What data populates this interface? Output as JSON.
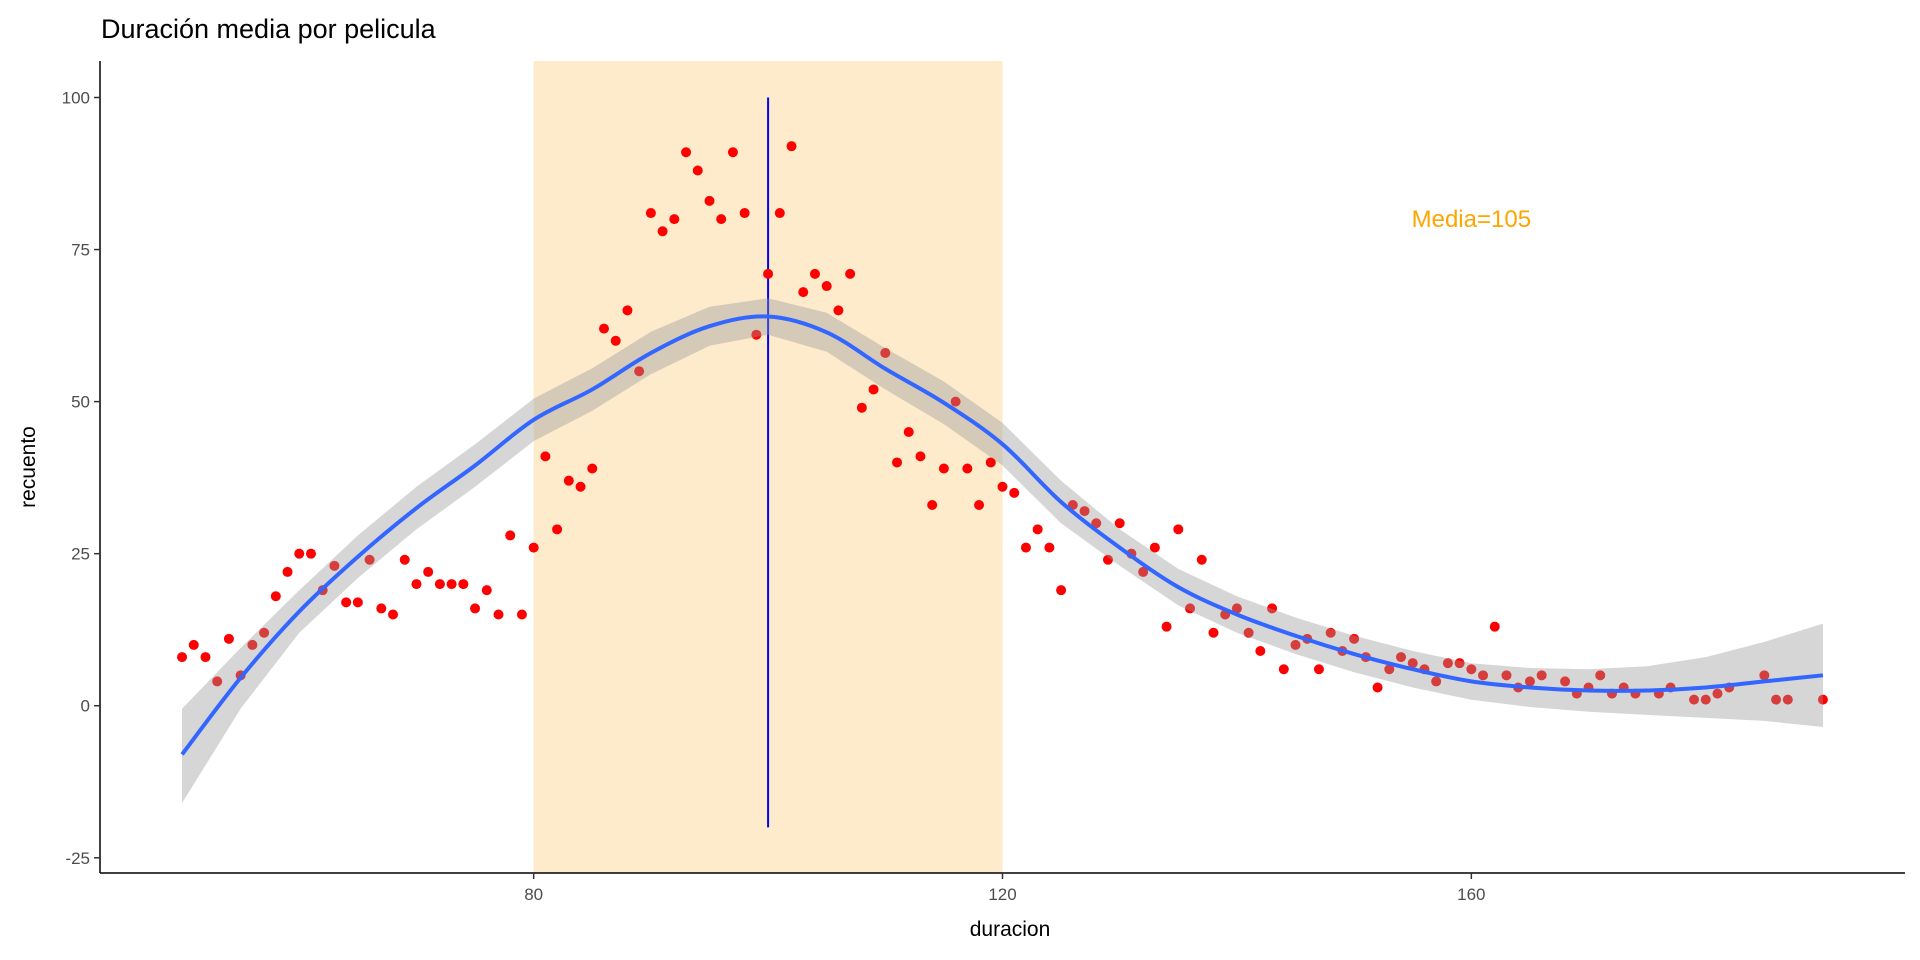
{
  "chart_data": {
    "type": "scatter",
    "title": "Duración media por pelicula",
    "xlabel": "duracion",
    "ylabel": "recuento",
    "xlim": [
      43,
      197
    ],
    "ylim": [
      -27.5,
      106
    ],
    "x_ticks": [
      80,
      120,
      160
    ],
    "y_ticks": [
      -25,
      0,
      25,
      50,
      75,
      100
    ],
    "grid": false,
    "points": {
      "name": "recuento",
      "color": "#FF0000",
      "x": [
        50,
        51,
        52,
        53,
        54,
        55,
        56,
        57,
        58,
        59,
        60,
        61,
        62,
        63,
        64,
        65,
        66,
        67,
        68,
        69,
        70,
        71,
        72,
        73,
        74,
        75,
        76,
        77,
        78,
        79,
        80,
        81,
        82,
        83,
        84,
        85,
        86,
        87,
        88,
        89,
        90,
        91,
        92,
        93,
        94,
        95,
        96,
        97,
        98,
        99,
        100,
        101,
        102,
        103,
        104,
        105,
        106,
        107,
        108,
        109,
        110,
        111,
        112,
        113,
        114,
        115,
        116,
        117,
        118,
        119,
        120,
        121,
        122,
        123,
        124,
        125,
        126,
        127,
        128,
        129,
        130,
        131,
        132,
        133,
        134,
        135,
        136,
        137,
        138,
        139,
        140,
        141,
        142,
        143,
        144,
        145,
        146,
        147,
        148,
        149,
        150,
        151,
        152,
        153,
        154,
        155,
        156,
        157,
        158,
        159,
        160,
        161,
        162,
        163,
        164,
        165,
        166,
        168,
        169,
        170,
        171,
        172,
        173,
        174,
        176,
        177,
        179,
        180,
        181,
        182,
        185,
        186,
        187,
        190
      ],
      "y": [
        8,
        10,
        8,
        4,
        11,
        5,
        10,
        12,
        18,
        22,
        25,
        25,
        19,
        23,
        17,
        17,
        24,
        16,
        15,
        24,
        20,
        22,
        20,
        20,
        20,
        16,
        19,
        15,
        28,
        15,
        26,
        41,
        29,
        37,
        36,
        39,
        62,
        60,
        65,
        55,
        81,
        78,
        80,
        91,
        88,
        83,
        80,
        91,
        81,
        61,
        71,
        81,
        92,
        68,
        71,
        69,
        65,
        71,
        49,
        52,
        58,
        40,
        45,
        41,
        33,
        39,
        50,
        39,
        33,
        40,
        36,
        35,
        26,
        29,
        26,
        19,
        33,
        32,
        30,
        24,
        30,
        25,
        22,
        26,
        13,
        29,
        16,
        24,
        12,
        15,
        16,
        12,
        9,
        16,
        6,
        10,
        11,
        6,
        12,
        9,
        11,
        8,
        3,
        6,
        8,
        7,
        6,
        4,
        7,
        7,
        6,
        5,
        13,
        5,
        3,
        4,
        5,
        4,
        2,
        3,
        5,
        2,
        3,
        2,
        2,
        3,
        1,
        1,
        2,
        3,
        5,
        1,
        1,
        1
      ]
    },
    "smooth": {
      "name": "loess",
      "color": "#3366FF",
      "ribbon_color": "#999999",
      "x": [
        50,
        55,
        60,
        65,
        70,
        75,
        80,
        85,
        90,
        95,
        100,
        105,
        110,
        115,
        120,
        125,
        130,
        135,
        140,
        145,
        150,
        155,
        160,
        165,
        170,
        175,
        180,
        185,
        190
      ],
      "y": [
        -8,
        4.6,
        15.5,
        24.5,
        32.5,
        39.5,
        47,
        52,
        58,
        62.4,
        64,
        61.4,
        55.4,
        49.8,
        43,
        33.5,
        26,
        19.5,
        15,
        11.5,
        8.5,
        6,
        4,
        3,
        2.5,
        2.5,
        3,
        4,
        5
      ],
      "ymin": [
        -16,
        -0.5,
        12,
        21,
        29,
        36,
        43.5,
        48.5,
        54.5,
        59.2,
        61,
        58.2,
        52,
        46.3,
        39.5,
        30,
        23,
        16.5,
        12,
        8.5,
        5.5,
        3,
        1,
        -0.2,
        -1,
        -1.5,
        -2,
        -2.5,
        -3.5
      ],
      "ymax": [
        -0.5,
        9.5,
        19,
        28,
        36,
        43,
        50.5,
        55.5,
        61.5,
        65.6,
        67,
        64.6,
        58.8,
        53.3,
        46.5,
        37,
        29,
        22.5,
        18,
        14.5,
        11.5,
        9,
        7,
        6.2,
        6,
        6.5,
        8,
        10.5,
        13.5
      ]
    },
    "highlight_band": {
      "xmin": 80,
      "xmax": 120,
      "color": "#FDEBCB"
    },
    "vline": {
      "x": 100,
      "ymin": -20,
      "ymax": 100,
      "color": "#0000FF"
    },
    "annotation": {
      "text": "Media=105",
      "x": 160,
      "y": 80,
      "color": "#FFA500"
    }
  }
}
